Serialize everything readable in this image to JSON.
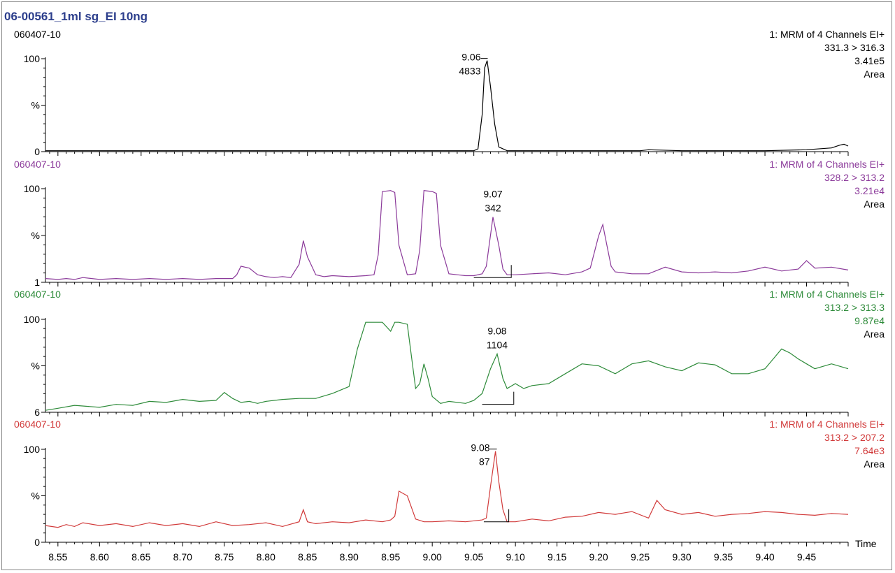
{
  "chart_data": {
    "type": "line",
    "title": "06-00561_1ml sg_EI 10ng",
    "xlabel": "Time",
    "xlim": [
      8.535,
      9.5
    ],
    "x_ticks": [
      8.55,
      8.6,
      8.65,
      8.7,
      8.75,
      8.8,
      8.85,
      8.9,
      8.95,
      9.0,
      9.05,
      9.1,
      9.15,
      9.2,
      9.25,
      9.3,
      9.35,
      9.4,
      9.45
    ],
    "x_tick_labels": [
      "8.55",
      "8.60",
      "8.65",
      "8.70",
      "8.75",
      "8.80",
      "8.85",
      "8.90",
      "8.95",
      "9.00",
      "9.05",
      "9.10",
      "9.15",
      "9.20",
      "9.25",
      "9.30",
      "9.35",
      "9.40",
      "9.45"
    ],
    "ylabel": "%",
    "panels": [
      {
        "sample": "060407-10",
        "function": "1: MRM of 4 Channels EI+",
        "transition": "331.3 > 316.3",
        "intensity": "3.41e5",
        "mode": "Area",
        "color": "#000000",
        "y_top_label": "100",
        "y_mid_label": "%",
        "y_bottom_label": "0",
        "ymin": 0,
        "peak_rt": "9.06",
        "peak_area": "4833",
        "peak_x": 9.065,
        "x": [
          8.535,
          8.6,
          8.7,
          8.8,
          8.9,
          9.0,
          9.04,
          9.05,
          9.055,
          9.06,
          9.063,
          9.066,
          9.07,
          9.075,
          9.08,
          9.09,
          9.1,
          9.2,
          9.25,
          9.26,
          9.3,
          9.4,
          9.45,
          9.48,
          9.49,
          9.495,
          9.5
        ],
        "y": [
          1,
          1,
          1,
          1,
          1,
          1,
          1,
          1,
          3,
          40,
          90,
          98,
          70,
          30,
          5,
          1,
          1,
          1,
          1,
          2,
          1,
          1,
          2,
          4,
          7,
          8,
          6
        ],
        "baseline": null
      },
      {
        "sample": "060407-10",
        "function": "1: MRM of 4 Channels EI+",
        "transition": "328.2 > 313.2",
        "intensity": "3.21e4",
        "mode": "Area",
        "color": "#8b3a9a",
        "y_top_label": "100",
        "y_mid_label": "%",
        "y_bottom_label": "1",
        "ymin": 1,
        "peak_rt": "9.07",
        "peak_area": "342",
        "peak_x": 9.073,
        "x": [
          8.535,
          8.55,
          8.56,
          8.57,
          8.58,
          8.6,
          8.62,
          8.64,
          8.66,
          8.68,
          8.7,
          8.72,
          8.74,
          8.76,
          8.765,
          8.77,
          8.78,
          8.79,
          8.8,
          8.81,
          8.82,
          8.83,
          8.84,
          8.845,
          8.85,
          8.86,
          8.87,
          8.88,
          8.9,
          8.92,
          8.93,
          8.935,
          8.94,
          8.95,
          8.955,
          8.96,
          8.97,
          8.98,
          8.985,
          8.99,
          9.0,
          9.005,
          9.01,
          9.02,
          9.03,
          9.04,
          9.05,
          9.06,
          9.065,
          9.073,
          9.08,
          9.085,
          9.09,
          9.1,
          9.12,
          9.14,
          9.16,
          9.18,
          9.19,
          9.2,
          9.205,
          9.21,
          9.215,
          9.22,
          9.24,
          9.26,
          9.28,
          9.3,
          9.32,
          9.34,
          9.36,
          9.38,
          9.4,
          9.42,
          9.44,
          9.45,
          9.46,
          9.48,
          9.5
        ],
        "y": [
          5,
          4,
          5,
          4,
          6,
          4,
          5,
          4,
          5,
          4,
          5,
          4,
          5,
          5,
          9,
          18,
          16,
          9,
          7,
          6,
          7,
          6,
          20,
          45,
          28,
          9,
          7,
          8,
          7,
          8,
          9,
          30,
          97,
          98,
          96,
          40,
          9,
          10,
          35,
          98,
          97,
          95,
          40,
          10,
          9,
          8,
          8,
          10,
          18,
          70,
          40,
          15,
          9,
          9,
          10,
          11,
          9,
          12,
          16,
          50,
          62,
          40,
          18,
          12,
          10,
          10,
          17,
          12,
          11,
          12,
          11,
          13,
          17,
          13,
          15,
          24,
          16,
          17,
          14
        ],
        "baseline": [
          9.05,
          9.095
        ]
      },
      {
        "sample": "060407-10",
        "function": "1: MRM of 4 Channels EI+",
        "transition": "313.2 > 313.3",
        "intensity": "9.87e4",
        "mode": "Area",
        "color": "#2e8b3a",
        "y_top_label": "100",
        "y_mid_label": "%",
        "y_bottom_label": "6",
        "ymin": 6,
        "peak_rt": "9.08",
        "peak_area": "1104",
        "peak_x": 9.078,
        "x": [
          8.535,
          8.55,
          8.57,
          8.6,
          8.62,
          8.64,
          8.66,
          8.68,
          8.7,
          8.72,
          8.74,
          8.75,
          8.76,
          8.77,
          8.78,
          8.79,
          8.8,
          8.82,
          8.84,
          8.86,
          8.88,
          8.9,
          8.91,
          8.92,
          8.93,
          8.94,
          8.95,
          8.955,
          8.96,
          8.97,
          8.98,
          8.985,
          8.99,
          8.995,
          9.0,
          9.01,
          9.02,
          9.04,
          9.05,
          9.06,
          9.07,
          9.078,
          9.085,
          9.09,
          9.1,
          9.11,
          9.12,
          9.14,
          9.16,
          9.18,
          9.2,
          9.22,
          9.24,
          9.26,
          9.28,
          9.3,
          9.32,
          9.34,
          9.36,
          9.38,
          9.4,
          9.41,
          9.42,
          9.43,
          9.44,
          9.45,
          9.46,
          9.48,
          9.5
        ],
        "y": [
          8,
          10,
          13,
          11,
          14,
          13,
          17,
          16,
          19,
          17,
          18,
          26,
          20,
          16,
          17,
          15,
          17,
          19,
          20,
          20,
          25,
          32,
          70,
          97,
          97,
          97,
          88,
          97,
          97,
          95,
          30,
          35,
          55,
          40,
          22,
          15,
          17,
          15,
          18,
          25,
          50,
          65,
          40,
          30,
          35,
          30,
          33,
          35,
          45,
          55,
          53,
          45,
          55,
          58,
          52,
          48,
          56,
          54,
          45,
          45,
          50,
          60,
          70,
          66,
          60,
          55,
          50,
          55,
          50
        ],
        "baseline": [
          9.06,
          9.098
        ]
      },
      {
        "sample": "060407-10",
        "function": "1: MRM of 4 Channels EI+",
        "transition": "313.2 > 207.2",
        "intensity": "7.64e3",
        "mode": "Area",
        "color": "#d13a3a",
        "y_top_label": "100",
        "y_mid_label": "%",
        "y_bottom_label": "0",
        "ymin": 0,
        "peak_rt": "9.08",
        "peak_area": "87",
        "peak_x": 9.076,
        "x": [
          8.535,
          8.55,
          8.56,
          8.57,
          8.58,
          8.6,
          8.62,
          8.64,
          8.66,
          8.68,
          8.7,
          8.72,
          8.74,
          8.76,
          8.78,
          8.8,
          8.82,
          8.84,
          8.845,
          8.85,
          8.86,
          8.88,
          8.9,
          8.92,
          8.94,
          8.95,
          8.955,
          8.96,
          8.97,
          8.98,
          8.99,
          9.0,
          9.02,
          9.04,
          9.06,
          9.065,
          9.07,
          9.076,
          9.08,
          9.085,
          9.09,
          9.1,
          9.12,
          9.14,
          9.16,
          9.18,
          9.2,
          9.22,
          9.24,
          9.26,
          9.27,
          9.28,
          9.3,
          9.32,
          9.34,
          9.36,
          9.38,
          9.4,
          9.42,
          9.44,
          9.46,
          9.48,
          9.5
        ],
        "y": [
          18,
          16,
          19,
          17,
          21,
          18,
          20,
          17,
          21,
          18,
          20,
          17,
          22,
          18,
          19,
          21,
          17,
          22,
          35,
          22,
          20,
          22,
          21,
          24,
          22,
          24,
          28,
          55,
          50,
          25,
          22,
          22,
          23,
          22,
          24,
          26,
          60,
          98,
          65,
          35,
          22,
          22,
          25,
          23,
          27,
          28,
          32,
          30,
          33,
          26,
          45,
          35,
          30,
          32,
          28,
          30,
          31,
          33,
          32,
          30,
          29,
          31,
          30
        ],
        "baseline": [
          9.062,
          9.092
        ]
      }
    ]
  }
}
